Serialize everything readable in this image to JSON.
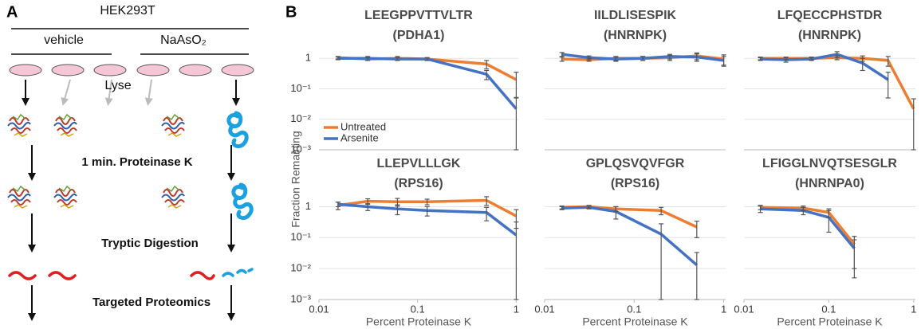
{
  "panel_a": {
    "letter": "A",
    "cell_line": "HEK293T",
    "vehicle": "vehicle",
    "treatment": "NaAsO₂",
    "lyse": "Lyse",
    "step1": "1 min. Proteinase K",
    "step2": "Tryptic Digestion",
    "step3": "Targeted Proteomics"
  },
  "panel_b": {
    "letter": "B",
    "y_label": "Fraction Remaining"
  },
  "chart_data": [
    {
      "type": "line",
      "title": "LEEGPPVTTVLTR",
      "subtitle": "(PDHA1)",
      "log_x": true,
      "log_y": true,
      "xlim": [
        0.01,
        1.05
      ],
      "ylim": [
        0.001,
        2.5
      ],
      "yticks": [
        1,
        {
          "value": 0.1,
          "label": "10⁻¹"
        },
        {
          "value": 0.01,
          "label": "10⁻²"
        },
        {
          "value": 0.001,
          "label": "10⁻³"
        }
      ],
      "show_yticks": true,
      "legend": "lower left",
      "x": [
        0.0156,
        0.03125,
        0.0625,
        0.125,
        0.5,
        1
      ],
      "series": [
        {
          "name": "Untreated",
          "color": "#ed7d31",
          "values": [
            1.05,
            0.95,
            1.0,
            0.95,
            0.65,
            0.2
          ],
          "errors": [
            0.1,
            0.1,
            0.15,
            0.1,
            0.2,
            0.15
          ]
        },
        {
          "name": "Arsenite",
          "color": "#4472c4",
          "values": [
            1.0,
            1.0,
            0.95,
            0.95,
            0.3,
            0.022
          ],
          "errors": [
            0.1,
            0.15,
            0.1,
            0.1,
            0.1,
            0.03
          ]
        }
      ]
    },
    {
      "type": "line",
      "title": "IILDLISESPIK",
      "subtitle": "(HNRNPK)",
      "log_x": true,
      "log_y": true,
      "xlim": [
        0.01,
        1.05
      ],
      "ylim": [
        0.001,
        2.5
      ],
      "yticks": [
        1,
        0.1,
        0.01,
        0.001
      ],
      "show_yticks": false,
      "x": [
        0.0156,
        0.03125,
        0.0625,
        0.125,
        0.25,
        0.5,
        1
      ],
      "series": [
        {
          "color": "#ed7d31",
          "values": [
            0.95,
            0.9,
            1.0,
            1.0,
            1.05,
            1.2,
            0.95
          ],
          "errors": [
            0.15,
            0.1,
            0.15,
            0.15,
            0.2,
            0.3,
            0.35
          ]
        },
        {
          "color": "#4472c4",
          "values": [
            1.35,
            1.05,
            0.95,
            1.0,
            1.15,
            1.1,
            0.85
          ],
          "errors": [
            0.2,
            0.15,
            0.15,
            0.15,
            0.2,
            0.3,
            0.3
          ]
        }
      ]
    },
    {
      "type": "line",
      "title": "LFQECCPHSTDR",
      "subtitle": "(HNRNPK)",
      "log_x": true,
      "log_y": true,
      "xlim": [
        0.01,
        1.05
      ],
      "ylim": [
        0.001,
        2.5
      ],
      "yticks": [
        1,
        0.1,
        0.01,
        0.001
      ],
      "show_yticks": false,
      "x": [
        0.0156,
        0.03125,
        0.0625,
        0.125,
        0.25,
        0.5,
        1
      ],
      "series": [
        {
          "color": "#ed7d31",
          "values": [
            1.0,
            1.0,
            1.0,
            1.05,
            1.0,
            0.85,
            0.022
          ],
          "errors": [
            0.1,
            0.1,
            0.1,
            0.15,
            0.2,
            0.3,
            0.025
          ]
        },
        {
          "color": "#4472c4",
          "values": [
            0.95,
            0.9,
            0.95,
            1.35,
            0.7,
            0.2,
            null
          ],
          "errors": [
            0.1,
            0.15,
            0.1,
            0.3,
            0.3,
            0.15,
            null
          ]
        }
      ]
    },
    {
      "type": "line",
      "title": "LLEPVLLLGK",
      "subtitle": "(RPS16)",
      "log_x": true,
      "log_y": true,
      "xlim": [
        0.01,
        1.05
      ],
      "ylim": [
        0.001,
        2.5
      ],
      "yticks": [
        1,
        {
          "value": 0.1,
          "label": "10⁻¹"
        },
        {
          "value": 0.01,
          "label": "10⁻²"
        },
        {
          "value": 0.001,
          "label": "10⁻³"
        }
      ],
      "show_yticks": true,
      "xticks": [
        0.01,
        0.1,
        1
      ],
      "x_label": "Percent Proteinase K",
      "x": [
        0.0156,
        0.03125,
        0.0625,
        0.125,
        0.5,
        1
      ],
      "series": [
        {
          "color": "#ed7d31",
          "values": [
            1.1,
            1.5,
            1.45,
            1.45,
            1.6,
            0.5
          ],
          "errors": [
            0.3,
            0.3,
            0.4,
            0.3,
            0.5,
            0.3
          ]
        },
        {
          "color": "#4472c4",
          "values": [
            1.2,
            1.0,
            0.85,
            0.75,
            0.65,
            0.12
          ],
          "errors": [
            0.2,
            0.25,
            0.3,
            0.25,
            0.3,
            0.2
          ]
        }
      ]
    },
    {
      "type": "line",
      "title": "GPLQSVQVFGR",
      "subtitle": "(RPS16)",
      "log_x": true,
      "log_y": true,
      "xlim": [
        0.01,
        1.05
      ],
      "ylim": [
        0.001,
        2.5
      ],
      "yticks": [
        1,
        0.1,
        0.01,
        0.001
      ],
      "show_yticks": false,
      "xticks": [
        0.01,
        0.1,
        1
      ],
      "x_label": "Percent Proteinase K",
      "x": [
        0.0156,
        0.03125,
        0.0625,
        0.2,
        0.5
      ],
      "series": [
        {
          "color": "#ed7d31",
          "values": [
            0.95,
            1.0,
            0.85,
            0.75,
            0.22
          ],
          "errors": [
            0.1,
            0.1,
            0.15,
            0.2,
            0.12
          ]
        },
        {
          "color": "#4472c4",
          "values": [
            0.9,
            0.95,
            0.7,
            0.13,
            0.013
          ],
          "errors": [
            0.1,
            0.1,
            0.3,
            0.15,
            0.02
          ]
        }
      ]
    },
    {
      "type": "line",
      "title": "LFIGGLNVQTSESGLR",
      "subtitle": "(HNRNPA0)",
      "log_x": true,
      "log_y": true,
      "xlim": [
        0.01,
        1.05
      ],
      "ylim": [
        0.001,
        2.5
      ],
      "yticks": [
        1,
        0.1,
        0.01,
        0.001
      ],
      "show_yticks": false,
      "xticks": [
        0.01,
        0.1,
        1
      ],
      "x_label": "Percent Proteinase K",
      "x": [
        0.0156,
        0.05,
        0.1,
        0.2
      ],
      "series": [
        {
          "color": "#ed7d31",
          "values": [
            0.95,
            0.9,
            0.65,
            0.06
          ],
          "errors": [
            0.15,
            0.15,
            0.2,
            0.05
          ]
        },
        {
          "color": "#4472c4",
          "values": [
            0.85,
            0.75,
            0.45,
            0.045
          ],
          "errors": [
            0.2,
            0.2,
            0.3,
            0.04
          ]
        }
      ]
    }
  ]
}
